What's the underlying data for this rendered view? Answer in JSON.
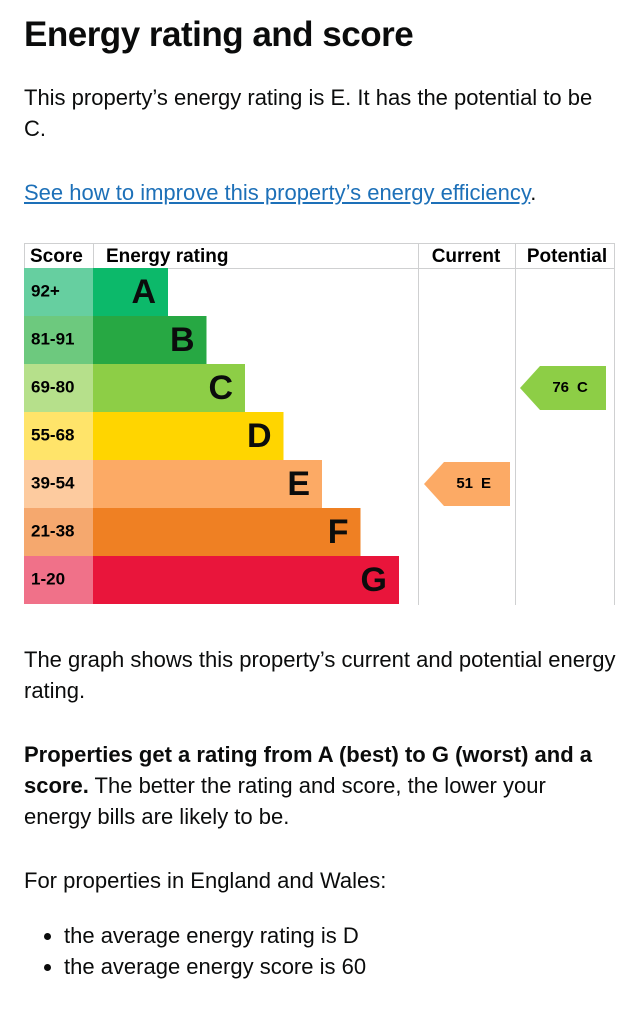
{
  "heading": "Energy rating and score",
  "intro": "This property’s energy rating is E. It has the potential to be C.",
  "link": {
    "text": "See how to improve this property’s energy efficiency",
    "after": "."
  },
  "graph": {
    "headers": [
      "Score",
      "Energy rating",
      "Current",
      "Potential"
    ],
    "bands": [
      {
        "score": "92+",
        "rating": "A",
        "color": "#0cb96a",
        "score_color": "#66cfa0"
      },
      {
        "score": "81-91",
        "rating": "B",
        "color": "#27a843",
        "score_color": "#6dc97e"
      },
      {
        "score": "69-80",
        "rating": "C",
        "color": "#8dce46",
        "score_color": "#b6e08b"
      },
      {
        "score": "55-68",
        "rating": "D",
        "color": "#ffd500",
        "score_color": "#ffe46a"
      },
      {
        "score": "39-54",
        "rating": "E",
        "color": "#fcaa65",
        "score_color": "#fdcb9f"
      },
      {
        "score": "21-38",
        "rating": "F",
        "color": "#ef8023",
        "score_color": "#f5a86e"
      },
      {
        "score": "1-20",
        "rating": "G",
        "color": "#e9153b",
        "score_color": "#f07189"
      }
    ],
    "current": {
      "score": 51,
      "rating": "E"
    },
    "potential": {
      "score": 76,
      "rating": "C"
    }
  },
  "graph_note": "The graph shows this property’s current and potential energy rating.",
  "rating_info": {
    "bold": "Properties get a rating from A (best) to G (worst) and a score.",
    "rest": " The better the rating and score, the lower your energy bills are likely to be."
  },
  "region_intro": "For properties in England and Wales:",
  "averages": [
    "the average energy rating is D",
    "the average energy score is 60"
  ]
}
